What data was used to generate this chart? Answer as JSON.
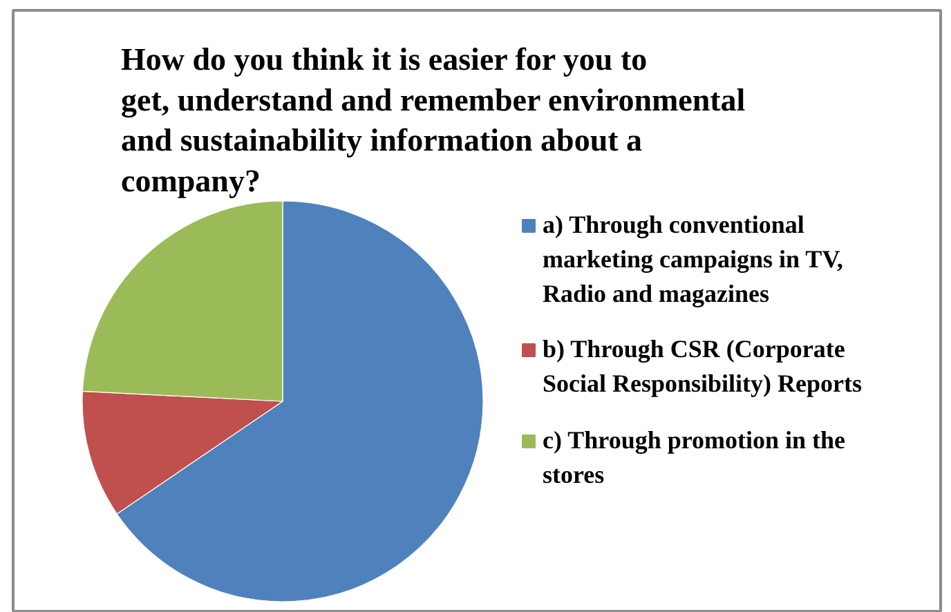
{
  "chart_data": {
    "type": "pie",
    "title": "How do you think it is easier for you to get, understand and remember environmental and sustainability information about a company?",
    "categories": [
      "a) Through conventional marketing campaigns in TV, Radio and magazines",
      "b) Through CSR (Corporate Social Responsibility) Reports",
      "c) Through promotion in the stores"
    ],
    "values": [
      65.5,
      10.3,
      24.2
    ],
    "colors": [
      "#4f81bd",
      "#c0504d",
      "#9bbb59"
    ],
    "legend": "right"
  }
}
